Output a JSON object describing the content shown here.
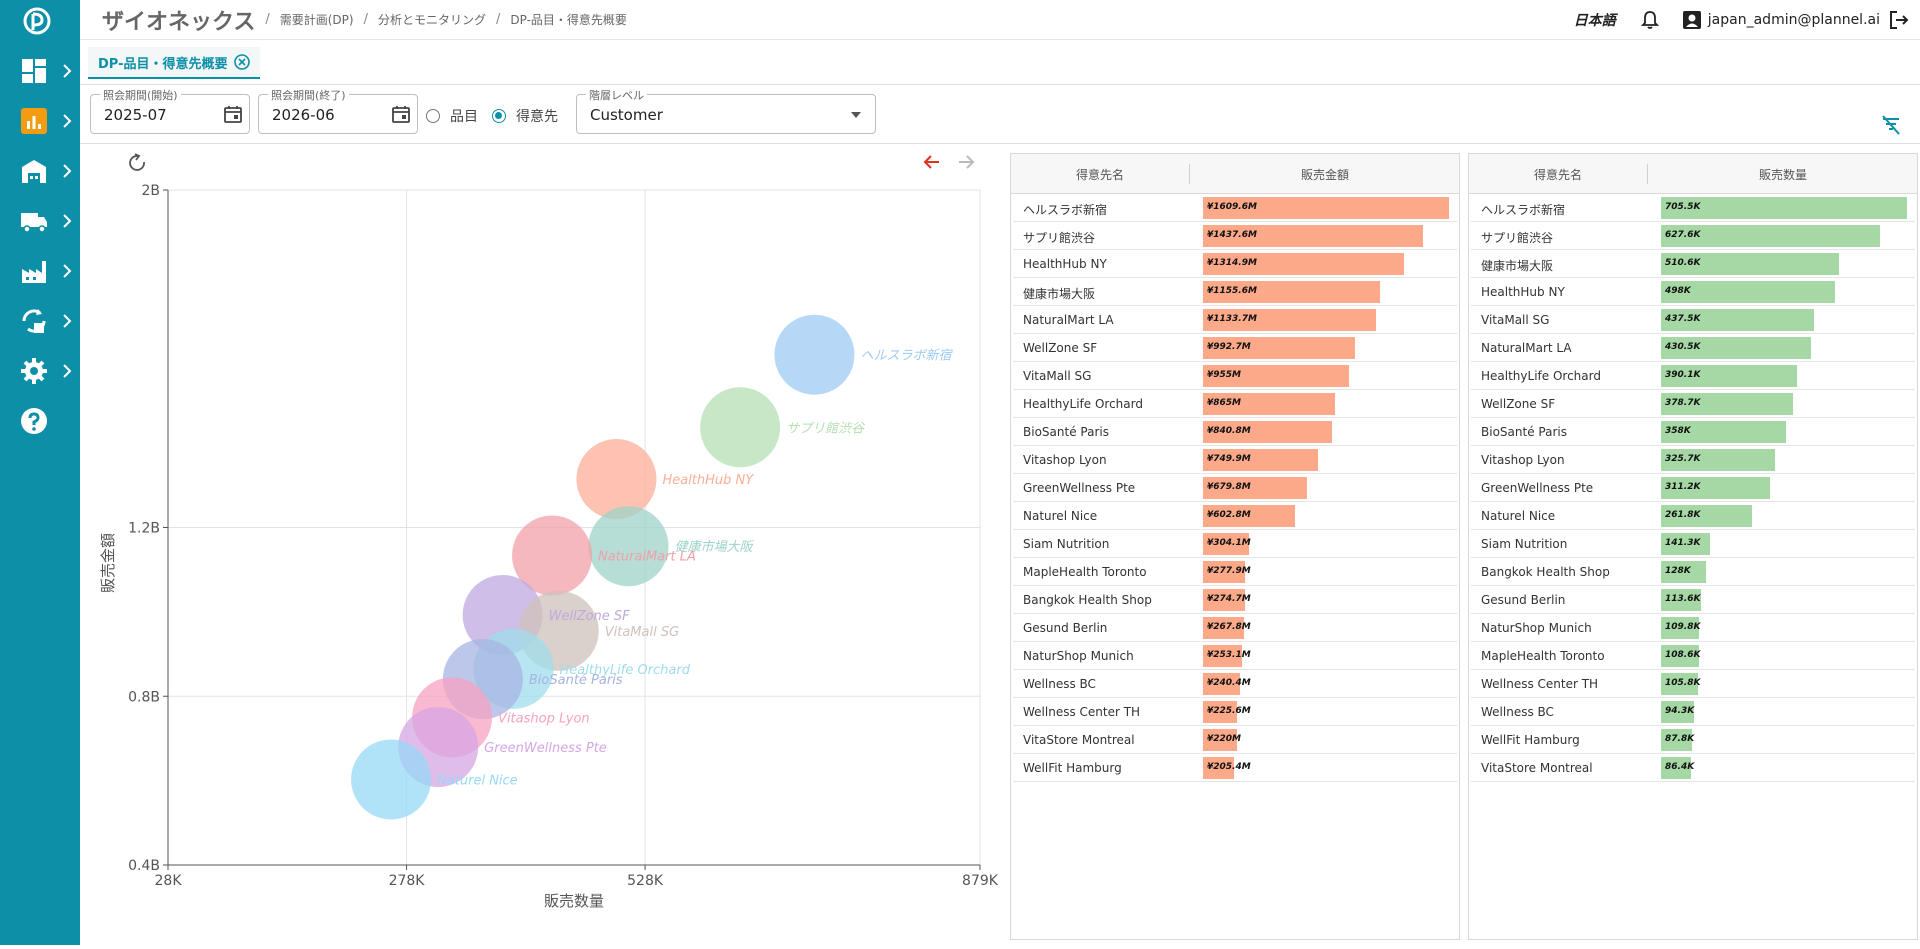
{
  "header": {
    "app_title": "ザイオネックス",
    "breadcrumbs": [
      "需要計画(DP)",
      "分析とモニタリング",
      "DP-品目・得意先概要"
    ],
    "language": "日本語",
    "user": "japan_admin@plannel.ai"
  },
  "tab": {
    "label": "DP-品目・得意先概要"
  },
  "filters": {
    "period_start": {
      "label": "照会期間(開始)",
      "value": "2025-07"
    },
    "period_end": {
      "label": "照会期間(終了)",
      "value": "2026-06"
    },
    "radio_item": "品目",
    "radio_customer": "得意先",
    "radio_selected": "customer",
    "level": {
      "label": "階層レベル",
      "value": "Customer"
    }
  },
  "colors": {
    "accent": "#0d8fa8",
    "amount_bar": "#fca98a",
    "qty_bar": "#a5d8a5"
  },
  "chart_data": {
    "type": "scatter",
    "xlabel": "販売数量",
    "ylabel": "販売金額",
    "x_ticks": [
      "28K",
      "278K",
      "528K",
      "879K"
    ],
    "y_ticks": [
      "2B",
      "1.2B",
      "0.8B",
      "0.4B"
    ],
    "xlim": [
      28000,
      879000
    ],
    "ylim": [
      400000000,
      2000000000
    ],
    "points": [
      {
        "label": "ヘルスラボ新宿",
        "x": 705500,
        "y": 1609600000,
        "color": "#9ecbf3"
      },
      {
        "label": "サプリ館渋谷",
        "x": 627600,
        "y": 1437600000,
        "color": "#b4dfb4"
      },
      {
        "label": "HealthHub NY",
        "x": 498000,
        "y": 1314900000,
        "color": "#fcae97"
      },
      {
        "label": "健康市場大阪",
        "x": 510600,
        "y": 1155600000,
        "color": "#9dd3c9"
      },
      {
        "label": "NaturalMart LA",
        "x": 430500,
        "y": 1133700000,
        "color": "#f2a0a8"
      },
      {
        "label": "WellZone SF",
        "x": 378700,
        "y": 992700000,
        "color": "#bfa8df"
      },
      {
        "label": "VitaMall SG",
        "x": 437500,
        "y": 955000000,
        "color": "#cfc1bb"
      },
      {
        "label": "HealthyLife Orchard",
        "x": 390100,
        "y": 865000000,
        "color": "#9fdcec"
      },
      {
        "label": "BioSanté Paris",
        "x": 358000,
        "y": 840800000,
        "color": "#a7b4e2"
      },
      {
        "label": "Vitashop Lyon",
        "x": 325700,
        "y": 749900000,
        "color": "#f7a2c0"
      },
      {
        "label": "GreenWellness Pte",
        "x": 311200,
        "y": 679800000,
        "color": "#d6a6e4"
      },
      {
        "label": "Naturel Nice",
        "x": 261800,
        "y": 602800000,
        "color": "#96d8f5"
      }
    ]
  },
  "amount_table": {
    "col_name": "得意先名",
    "col_value": "販売金額",
    "max": 1609.6,
    "rows": [
      {
        "name": "ヘルスラボ新宿",
        "value": 1609.6,
        "label": "¥1609.6M"
      },
      {
        "name": "サプリ館渋谷",
        "value": 1437.6,
        "label": "¥1437.6M"
      },
      {
        "name": "HealthHub NY",
        "value": 1314.9,
        "label": "¥1314.9M"
      },
      {
        "name": "健康市場大阪",
        "value": 1155.6,
        "label": "¥1155.6M"
      },
      {
        "name": "NaturalMart LA",
        "value": 1133.7,
        "label": "¥1133.7M"
      },
      {
        "name": "WellZone SF",
        "value": 992.7,
        "label": "¥992.7M"
      },
      {
        "name": "VitaMall SG",
        "value": 955,
        "label": "¥955M"
      },
      {
        "name": "HealthyLife Orchard",
        "value": 865,
        "label": "¥865M"
      },
      {
        "name": "BioSanté Paris",
        "value": 840.8,
        "label": "¥840.8M"
      },
      {
        "name": "Vitashop Lyon",
        "value": 749.9,
        "label": "¥749.9M"
      },
      {
        "name": "GreenWellness Pte",
        "value": 679.8,
        "label": "¥679.8M"
      },
      {
        "name": "Naturel Nice",
        "value": 602.8,
        "label": "¥602.8M"
      },
      {
        "name": "Siam Nutrition",
        "value": 304.1,
        "label": "¥304.1M"
      },
      {
        "name": "MapleHealth Toronto",
        "value": 277.9,
        "label": "¥277.9M"
      },
      {
        "name": "Bangkok Health Shop",
        "value": 274.7,
        "label": "¥274.7M"
      },
      {
        "name": "Gesund Berlin",
        "value": 267.8,
        "label": "¥267.8M"
      },
      {
        "name": "NaturShop Munich",
        "value": 253.1,
        "label": "¥253.1M"
      },
      {
        "name": "Wellness BC",
        "value": 240.4,
        "label": "¥240.4M"
      },
      {
        "name": "Wellness Center TH",
        "value": 225.6,
        "label": "¥225.6M"
      },
      {
        "name": "VitaStore Montreal",
        "value": 220,
        "label": "¥220M"
      },
      {
        "name": "WellFit Hamburg",
        "value": 205.4,
        "label": "¥205.4M"
      }
    ]
  },
  "qty_table": {
    "col_name": "得意先名",
    "col_value": "販売数量",
    "max": 705.5,
    "rows": [
      {
        "name": "ヘルスラボ新宿",
        "value": 705.5,
        "label": "705.5K"
      },
      {
        "name": "サプリ館渋谷",
        "value": 627.6,
        "label": "627.6K"
      },
      {
        "name": "健康市場大阪",
        "value": 510.6,
        "label": "510.6K"
      },
      {
        "name": "HealthHub NY",
        "value": 498,
        "label": "498K"
      },
      {
        "name": "VitaMall SG",
        "value": 437.5,
        "label": "437.5K"
      },
      {
        "name": "NaturalMart LA",
        "value": 430.5,
        "label": "430.5K"
      },
      {
        "name": "HealthyLife Orchard",
        "value": 390.1,
        "label": "390.1K"
      },
      {
        "name": "WellZone SF",
        "value": 378.7,
        "label": "378.7K"
      },
      {
        "name": "BioSanté Paris",
        "value": 358,
        "label": "358K"
      },
      {
        "name": "Vitashop Lyon",
        "value": 325.7,
        "label": "325.7K"
      },
      {
        "name": "GreenWellness Pte",
        "value": 311.2,
        "label": "311.2K"
      },
      {
        "name": "Naturel Nice",
        "value": 261.8,
        "label": "261.8K"
      },
      {
        "name": "Siam Nutrition",
        "value": 141.3,
        "label": "141.3K"
      },
      {
        "name": "Bangkok Health Shop",
        "value": 128,
        "label": "128K"
      },
      {
        "name": "Gesund Berlin",
        "value": 113.6,
        "label": "113.6K"
      },
      {
        "name": "NaturShop Munich",
        "value": 109.8,
        "label": "109.8K"
      },
      {
        "name": "MapleHealth Toronto",
        "value": 108.6,
        "label": "108.6K"
      },
      {
        "name": "Wellness Center TH",
        "value": 105.8,
        "label": "105.8K"
      },
      {
        "name": "Wellness BC",
        "value": 94.3,
        "label": "94.3K"
      },
      {
        "name": "WellFit Hamburg",
        "value": 87.8,
        "label": "87.8K"
      },
      {
        "name": "VitaStore Montreal",
        "value": 86.4,
        "label": "86.4K"
      }
    ]
  }
}
